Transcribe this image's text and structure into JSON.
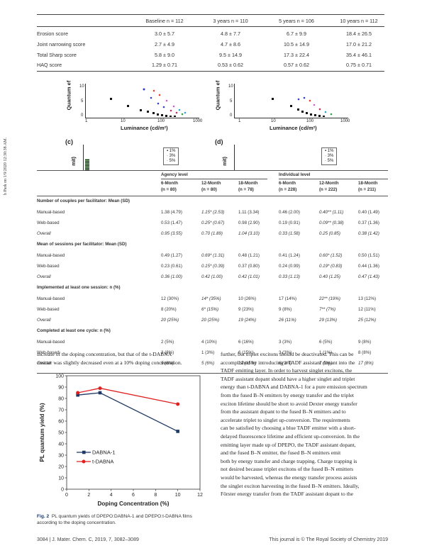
{
  "side_stamp": "h Park on 1/9/2020 12:30:38 AM.",
  "table1": {
    "columns": [
      "",
      "Baseline n = 112",
      "3 years n = 110",
      "5 years n = 106",
      "10 years n = 112"
    ],
    "rows": [
      [
        "Erosion score",
        "3.0 ± 5.7",
        "4.8 ± 7.7",
        "6.7 ± 9.9",
        "18.4 ± 26.5"
      ],
      [
        "Joint narrowing score",
        "2.7 ± 4.9",
        "4.7 ± 8.6",
        "10.5 ± 14.9",
        "17.0 ± 21.2"
      ],
      [
        "Total Sharp score",
        "5.8 ± 9.0",
        "9.5 ± 14.9",
        "17.3 ± 22.4",
        "35.4 ± 46.1"
      ],
      [
        "HAQ score",
        "1.29 ± 0.71",
        "0.53 ± 0.62",
        "0.57 ± 0.62",
        "0.75 ± 0.71"
      ]
    ]
  },
  "figure_top": {
    "ylabel": "Quantum ef",
    "xlabel": "Luminance (cd/m²)",
    "xticks": [
      "1",
      "10",
      "100",
      "1000"
    ],
    "yticks": [
      "0",
      "5",
      "10"
    ],
    "panel_c": "(c)",
    "panel_d": "(d)",
    "cropped_ylabel": "mit)",
    "legend": [
      "1%",
      "3%",
      "5%"
    ]
  },
  "table2": {
    "group_headers": [
      "Agency level",
      "Individual level"
    ],
    "columns": [
      {
        "line1": "6-Month",
        "line2": "(n = 80)"
      },
      {
        "line1": "12-Month",
        "line2": "(n = 80)"
      },
      {
        "line1": "18-Month",
        "line2": "(n = 78)"
      },
      {
        "line1": "6-Month",
        "line2": "(n = 228)"
      },
      {
        "line1": "12-Month",
        "line2": "(n = 222)"
      },
      {
        "line1": "18-Month",
        "line2": "(n = 211)"
      }
    ],
    "sections": [
      {
        "title": "Number of couples per facilitator: Mean (SD)",
        "rows": [
          {
            "label": "Manual-based",
            "cells": [
              "1.38 (4.79)",
              "1.15* (2.53)",
              "1.11 (3.34)",
              "0.46 (2.00)",
              "0.40** (1.11)",
              "0.40 (1.49)"
            ]
          },
          {
            "label": "Web-based",
            "cells": [
              "0.53 (1.47)",
              "0.25* (0.67)",
              "0.98 (2.90)",
              "0.19 (0.91)",
              "0.09** (0.38)",
              "0.37 (1.36)"
            ]
          },
          {
            "label": "Overall",
            "cells": [
              "0.95 (3.55)",
              "0.70 (1.89)",
              "1.04 (3.10)",
              "0.33 (1.58)",
              "0.25 (0.85)",
              "0.38 (1.42)"
            ]
          }
        ]
      },
      {
        "title": "Mean of sessions per facilitator: Mean (SD)",
        "rows": [
          {
            "label": "Manual-based",
            "cells": [
              "0.49 (1.27)",
              "0.69* (1.31)",
              "0.48 (1.21)",
              "0.41 (1.24)",
              "0.60* (1.52)",
              "0.50 (1.51)"
            ]
          },
          {
            "label": "Web-based",
            "cells": [
              "0.23 (0.61)",
              "0.15* (0.39)",
              "0.37 (0.80)",
              "0.24 (0.99)",
              "0.19* (0.83)",
              "0.44 (1.36)"
            ]
          },
          {
            "label": "Overall",
            "cells": [
              "0.36 (1.00)",
              "0.42 (1.00)",
              "0.42 (1.01)",
              "0.33 (1.13)",
              "0.40 (1.25)",
              "0.47 (1.43)"
            ]
          }
        ]
      },
      {
        "title": "Implemented at least one session: n (%)",
        "rows": [
          {
            "label": "Manual-based",
            "cells": [
              "12 (30%)",
              "14* (35%)",
              "10 (26%)",
              "17 (14%)",
              "22** (19%)",
              "13 (12%)"
            ]
          },
          {
            "label": "Web-based",
            "cells": [
              "8 (20%)",
              "6* (15%)",
              "9 (23%)",
              "9 (8%)",
              "7** (7%)",
              "12 (11%)"
            ]
          },
          {
            "label": "Overall",
            "cells": [
              "20 (25%)",
              "20 (25%)",
              "19 (24%)",
              "26 (11%)",
              "29 (13%)",
              "25 (12%)"
            ]
          }
        ]
      },
      {
        "title": "Completed at least one cycle: n (%)",
        "rows": [
          {
            "label": "Manual-based",
            "cells": [
              "2 (5%)",
              "4 (10%)",
              "6 (16%)",
              "3 (3%)",
              "6 (5%)",
              "9 (8%)"
            ]
          },
          {
            "label": "Web-based",
            "cells": [
              "3 (8%)",
              "1 (3%)",
              "6 (15%)",
              "3 (3%)",
              "1 (1%)",
              "8 (8%)"
            ]
          },
          {
            "label": "Overall",
            "cells": [
              "5 (6%)",
              "5 (6%)",
              "12 (15%)",
              "6 (3%)",
              "7 (3%)",
              "17 (8%)"
            ]
          }
        ]
      }
    ]
  },
  "left_text": [
    "increase of the doping concentration, but that of the t-DABNA",
    "emitter was slightly decreased even at a 10% doping concentration."
  ],
  "right_text": [
    "further, but triplet excitons should be deactivated. This can be",
    "accomplished by introducing a TADF assistant dopant into the",
    "TADF emitting layer. In order to harvest singlet excitons, the",
    "TADF assistant dopant should have a higher singlet and triplet",
    "energy than t-DABNA and DABNA-1 for a pure emission spectrum",
    "from the fused B–N emitters by energy transfer and the triplet",
    "exciton lifetime should be short to avoid Dexter energy transfer",
    "from the assistant dopant to the fused B–N emitters and to",
    "accelerate triplet to singlet up-conversion. The requirements",
    "can be satisfied by choosing a blue TADF emitter with a short-",
    "delayed fluorescence lifetime and efficient up-conversion. In the",
    "emitting layer made up of DPEPO, the TADF assistant dopant,",
    "and the fused B–N emitter, the fused B–N emitters emit",
    "both by energy transfer and charge trapping. Charge trapping is",
    "not desired because triplet excitons of the fused B–N emitters",
    "would be harvested, whereas the energy transfer process assists",
    "the singlet exciton harvesting in the fused B–N emitters. Ideally,",
    "Förster energy transfer from the TADF assistant dopant to the"
  ],
  "fig2_caption": {
    "label": "Fig. 2",
    "text": "PL quantum yields of DPEPO:DABNA-1 and DPEPO:t-DABNA films according to the doping concentration."
  },
  "footer": {
    "left": "3084 | J. Mater. Chem. C, 2019, 7, 3082–3089",
    "right": "This journal is © The Royal Society of Chemistry 2019"
  },
  "chart_data": [
    {
      "type": "line",
      "ylabel": "PL quantum yield (%)",
      "xlabel": "Doping Concentration (%)",
      "xlim": [
        0,
        12
      ],
      "ylim": [
        0,
        100
      ],
      "xticks": [
        0,
        2,
        4,
        6,
        8,
        10,
        12
      ],
      "yticks": [
        0,
        10,
        20,
        30,
        40,
        50,
        60,
        70,
        80,
        90,
        100
      ],
      "grid": false,
      "legend_position": "bottom-left",
      "series": [
        {
          "name": "DABNA-1",
          "color": "#1f3864",
          "marker": "square",
          "x": [
            1,
            3,
            10
          ],
          "y": [
            83,
            85,
            51
          ]
        },
        {
          "name": "t-DABNA",
          "color": "#e02020",
          "marker": "circle",
          "x": [
            1,
            3,
            10
          ],
          "y": [
            85,
            89,
            75
          ]
        }
      ]
    }
  ]
}
